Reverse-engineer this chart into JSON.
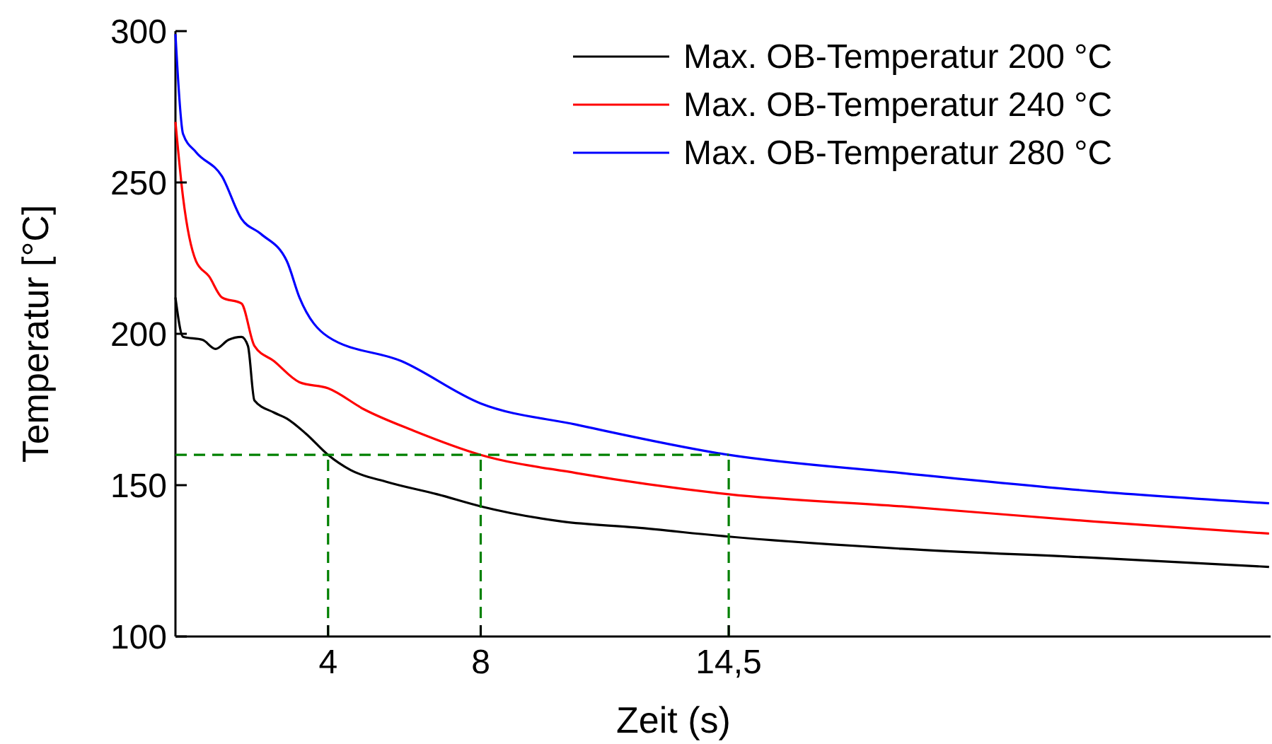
{
  "chart_data": {
    "type": "line",
    "xlabel": "Zeit (s)",
    "ylabel": "Temperatur [°C]",
    "xlim": [
      0,
      28.7
    ],
    "ylim": [
      100,
      300
    ],
    "xticks": [
      4,
      8,
      {
        "value": 14.5,
        "label": "14,5"
      }
    ],
    "yticks": [
      100,
      150,
      200,
      250,
      300
    ],
    "grid": false,
    "legend": "top right",
    "series": [
      {
        "name": "Max. OB-Temperatur 200 °C",
        "color": "#000000",
        "line_style": "solid",
        "x": [
          0,
          0.2,
          0.71,
          1.05,
          1.39,
          1.73,
          1.9,
          2.07,
          2.58,
          2.92,
          3.42,
          4,
          4.59,
          5.56,
          6.86,
          8,
          10.13,
          12.06,
          14.5,
          19.03,
          24.06,
          28.66
        ],
        "values": [
          212,
          199,
          198,
          195,
          198,
          199,
          196,
          178,
          174,
          172,
          167,
          160,
          155,
          151,
          147,
          143,
          138,
          136,
          133,
          129,
          126,
          123
        ]
      },
      {
        "name": "Max. OB-Temperatur 240 °C",
        "color": "#ff0000",
        "line_style": "solid",
        "x": [
          0,
          0.2,
          0.54,
          0.88,
          1.22,
          1.73,
          2.07,
          2.58,
          3.25,
          4,
          4.95,
          6.24,
          8,
          10.5,
          14.5,
          19.03,
          24.06,
          28.66
        ],
        "values": [
          270,
          245,
          224,
          219,
          212,
          210,
          196,
          191,
          184,
          182,
          175,
          168,
          160,
          154,
          147,
          143,
          138,
          134
        ]
      },
      {
        "name": "Max. OB-Temperatur 280 °C",
        "color": "#0000ff",
        "line_style": "solid",
        "x": [
          0,
          0.2,
          0.54,
          1.22,
          1.73,
          2.24,
          2.92,
          3.25,
          4,
          5.92,
          8,
          10.5,
          14.5,
          19.03,
          24.06,
          28.66
        ],
        "values": [
          299,
          266,
          260,
          252,
          238,
          233,
          224,
          212,
          199,
          191,
          177,
          170,
          160,
          154,
          148,
          144
        ]
      },
      {
        "color": "#008000",
        "line_style": "dashed",
        "x": [
          0,
          14.5
        ],
        "values": [
          160,
          160
        ]
      },
      {
        "color": "#008000",
        "line_style": "dashed",
        "x": [
          4,
          4
        ],
        "values": [
          100,
          160
        ]
      },
      {
        "color": "#008000",
        "line_style": "dashed",
        "x": [
          8,
          8
        ],
        "values": [
          100,
          160
        ]
      },
      {
        "color": "#008000",
        "line_style": "dashed",
        "x": [
          14.5,
          14.5
        ],
        "values": [
          100,
          160
        ]
      }
    ]
  }
}
